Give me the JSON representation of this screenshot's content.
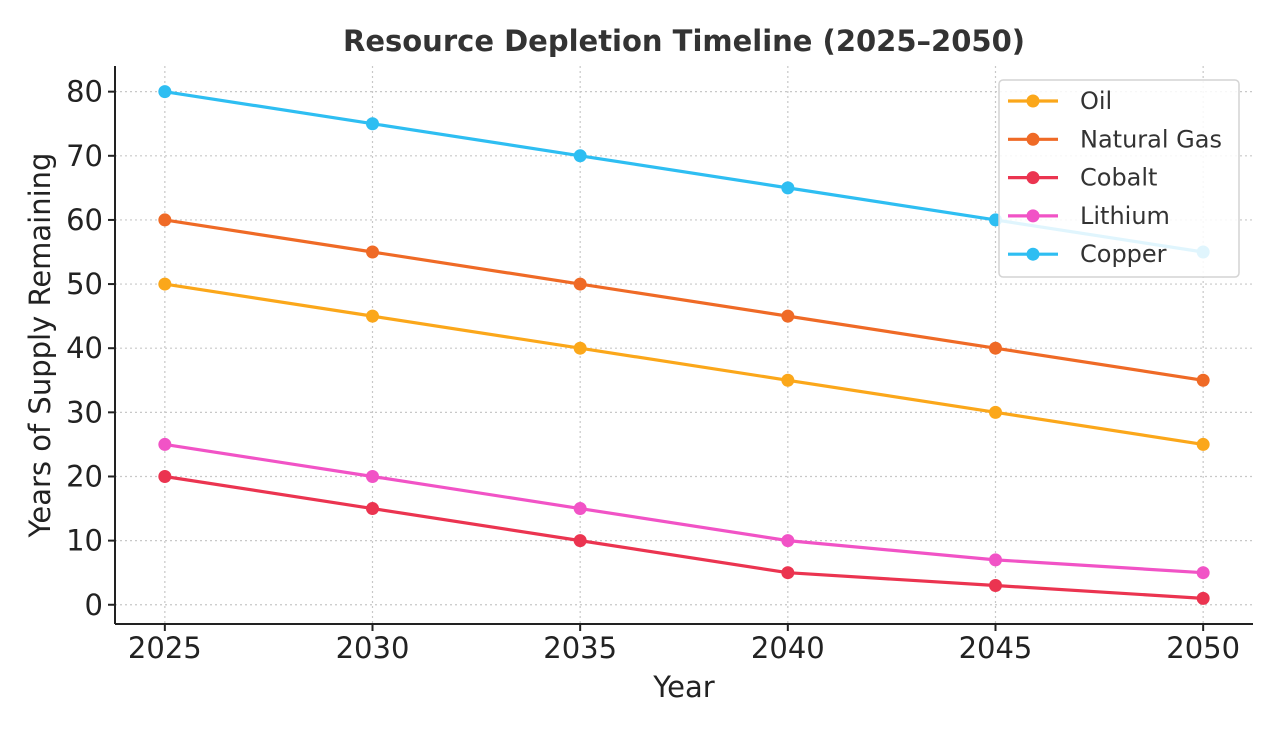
{
  "chart_data": {
    "type": "line",
    "title": "Resource Depletion Timeline (2025–2050)",
    "xlabel": "Year",
    "ylabel": "Years of Supply Remaining",
    "x": [
      2025,
      2030,
      2035,
      2040,
      2045,
      2050
    ],
    "xlim": [
      2023.8,
      2051.2
    ],
    "ylim": [
      -3,
      84
    ],
    "yticks": [
      0,
      10,
      20,
      30,
      40,
      50,
      60,
      70,
      80
    ],
    "grid": true,
    "legend_position": "top-right",
    "series": [
      {
        "name": "Oil",
        "color": "#FBA71A",
        "values": [
          50,
          45,
          40,
          35,
          30,
          25
        ]
      },
      {
        "name": "Natural Gas",
        "color": "#EF6A26",
        "values": [
          60,
          55,
          50,
          45,
          40,
          35
        ]
      },
      {
        "name": "Cobalt",
        "color": "#EB3450",
        "values": [
          20,
          15,
          10,
          5,
          3,
          1
        ]
      },
      {
        "name": "Lithium",
        "color": "#F153C6",
        "values": [
          25,
          20,
          15,
          10,
          7,
          5
        ]
      },
      {
        "name": "Copper",
        "color": "#2EBEF2",
        "values": [
          80,
          75,
          70,
          65,
          60,
          55
        ]
      }
    ]
  }
}
